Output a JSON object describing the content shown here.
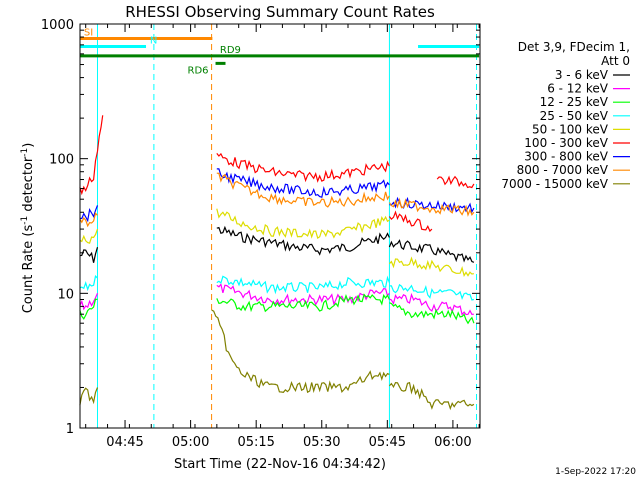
{
  "chart_data": {
    "type": "line",
    "title": "RHESSI Observing Summary Count Rates",
    "xlabel": "Start Time (22-Nov-16 04:34:42)",
    "ylabel_parts": [
      "Count Rate (s",
      "-1",
      " detector",
      "-1",
      ")"
    ],
    "yscale": "log",
    "xlim": [
      4.5783,
      6.1033
    ],
    "ylim": [
      1,
      1000
    ],
    "x_tick_labels": [
      "04:45",
      "05:00",
      "05:15",
      "05:30",
      "05:45",
      "06:00"
    ],
    "x_tick_values": [
      4.75,
      5.0,
      5.25,
      5.5,
      5.75,
      6.0
    ],
    "y_tick_labels": [
      "1",
      "10",
      "100",
      "1000"
    ],
    "y_tick_values": [
      1,
      10,
      100,
      1000
    ],
    "legend_header": [
      "Det 3,9, FDecim 1,",
      "Att 0"
    ],
    "series": [
      {
        "name": "3 - 6 keV",
        "color": "#000000",
        "segments": [
          {
            "x": [
              4.578,
              4.6,
              4.63,
              4.645
            ],
            "y": [
              19,
              20,
              18,
              22
            ]
          },
          {
            "x": [
              5.1,
              5.2,
              5.3,
              5.4,
              5.5,
              5.6,
              5.7,
              5.758
            ],
            "y": [
              30,
              26,
              24,
              22,
              21,
              22,
              25,
              26
            ]
          },
          {
            "x": [
              5.758,
              5.85,
              5.92,
              5.99,
              6.08
            ],
            "y": [
              24,
              22,
              21,
              19,
              17
            ]
          }
        ]
      },
      {
        "name": "6 - 12 keV",
        "color": "#ff00ff",
        "segments": [
          {
            "x": [
              4.578,
              4.6,
              4.63,
              4.645
            ],
            "y": [
              8,
              8,
              9,
              10
            ]
          },
          {
            "x": [
              5.1,
              5.2,
              5.3,
              5.4,
              5.5,
              5.6,
              5.7,
              5.758
            ],
            "y": [
              11,
              10,
              9,
              9,
              9,
              9,
              10,
              10
            ]
          },
          {
            "x": [
              5.758,
              5.85,
              5.92,
              5.99,
              6.08
            ],
            "y": [
              9,
              9,
              8,
              8,
              7
            ]
          }
        ]
      },
      {
        "name": "12 - 25 keV",
        "color": "#00ff00",
        "segments": [
          {
            "x": [
              4.578,
              4.6,
              4.63,
              4.645
            ],
            "y": [
              7,
              7,
              8,
              9
            ]
          },
          {
            "x": [
              5.1,
              5.2,
              5.3,
              5.4,
              5.5,
              5.6,
              5.7,
              5.758
            ],
            "y": [
              9,
              8,
              8,
              8,
              8,
              9,
              9,
              9
            ]
          },
          {
            "x": [
              5.758,
              5.85,
              5.92,
              5.99,
              6.08
            ],
            "y": [
              8,
              7,
              7,
              7,
              6
            ]
          }
        ]
      },
      {
        "name": "25 - 50 keV",
        "color": "#00ffff",
        "segments": [
          {
            "x": [
              4.578,
              4.6,
              4.63,
              4.645
            ],
            "y": [
              11,
              11,
              12,
              13
            ]
          },
          {
            "x": [
              5.1,
              5.2,
              5.3,
              5.4,
              5.5,
              5.6,
              5.7,
              5.758
            ],
            "y": [
              13,
              12,
              11,
              11,
              11,
              12,
              12,
              12
            ]
          },
          {
            "x": [
              5.758,
              5.85,
              5.92,
              5.99,
              6.08
            ],
            "y": [
              11,
              11,
              10,
              10,
              9
            ]
          }
        ]
      },
      {
        "name": "50 - 100 keV",
        "color": "#dddd00",
        "segments": [
          {
            "x": [
              4.578,
              4.6,
              4.63,
              4.645
            ],
            "y": [
              24,
              25,
              26,
              30
            ]
          },
          {
            "x": [
              5.1,
              5.2,
              5.3,
              5.4,
              5.5,
              5.6,
              5.7,
              5.758
            ],
            "y": [
              40,
              33,
              29,
              28,
              27,
              29,
              33,
              35
            ]
          },
          {
            "x": [
              5.758,
              5.85,
              5.92,
              5.99,
              6.08
            ],
            "y": [
              17,
              17,
              16,
              15,
              14
            ]
          }
        ]
      },
      {
        "name": "100 - 300 keV",
        "color": "#ff0000",
        "segments": [
          {
            "x": [
              4.578,
              4.6,
              4.63,
              4.645,
              4.665
            ],
            "y": [
              58,
              60,
              75,
              120,
              210
            ]
          },
          {
            "x": [
              5.1,
              5.2,
              5.3,
              5.4,
              5.5,
              5.6,
              5.7,
              5.758
            ],
            "y": [
              105,
              90,
              80,
              75,
              74,
              78,
              85,
              88
            ]
          },
          {
            "x": [
              5.758,
              5.85,
              5.92
            ],
            "y": [
              38,
              34,
              30
            ]
          },
          {
            "x": [
              5.94,
              6.0,
              6.08
            ],
            "y": [
              70,
              68,
              65
            ]
          }
        ]
      },
      {
        "name": "300 - 800 keV",
        "color": "#0000ff",
        "segments": [
          {
            "x": [
              4.578,
              4.6,
              4.63,
              4.645
            ],
            "y": [
              38,
              37,
              40,
              45
            ]
          },
          {
            "x": [
              5.1,
              5.2,
              5.3,
              5.4,
              5.5,
              5.6,
              5.7,
              5.758
            ],
            "y": [
              78,
              68,
              62,
              58,
              56,
              58,
              62,
              64
            ]
          },
          {
            "x": [
              5.758,
              5.85,
              5.92,
              5.99,
              6.08
            ],
            "y": [
              48,
              46,
              45,
              44,
              43
            ]
          }
        ]
      },
      {
        "name": "800 - 7000 keV",
        "color": "#ff8800",
        "segments": [
          {
            "x": [
              4.578,
              4.6,
              4.63,
              4.645
            ],
            "y": [
              34,
              33,
              35,
              38
            ]
          },
          {
            "x": [
              5.1,
              5.2,
              5.3,
              5.4,
              5.5,
              5.6,
              5.7,
              5.758
            ],
            "y": [
              75,
              60,
              52,
              48,
              47,
              48,
              52,
              53
            ]
          },
          {
            "x": [
              5.758,
              5.85,
              5.92,
              5.99,
              6.08
            ],
            "y": [
              46,
              45,
              43,
              42,
              40
            ]
          }
        ]
      },
      {
        "name": "7000 - 15000 keV",
        "color": "#808000",
        "segments": [
          {
            "x": [
              4.578,
              4.6,
              4.63,
              4.645
            ],
            "y": [
              1.5,
              2,
              1.5,
              2
            ]
          },
          {
            "x": [
              5.08,
              5.12,
              5.16,
              5.2,
              5.3,
              5.4,
              5.5,
              5.6,
              5.7,
              5.758
            ],
            "y": [
              8,
              5,
              3,
              2.5,
              2,
              2,
              2,
              2,
              2.5,
              2.5
            ]
          },
          {
            "x": [
              5.758,
              5.85,
              5.92,
              5.99,
              6.08
            ],
            "y": [
              2,
              2,
              1.5,
              1.5,
              1.5
            ]
          }
        ]
      }
    ],
    "flags": [
      {
        "label": "SI",
        "color": "#ff8800",
        "x": [
          4.578,
          5.083
        ],
        "y": 780
      },
      {
        "label": "N",
        "color": "#00ffff",
        "x": [
          4.578,
          4.83
        ],
        "y": 680
      },
      {
        "label": "",
        "color": "#00ffff",
        "x": [
          5.867,
          6.1
        ],
        "y": 680
      },
      {
        "label": "RD9",
        "color": "#008000",
        "x": [
          4.578,
          6.1
        ],
        "y": 580
      },
      {
        "label": "RD6",
        "color": "#008000",
        "x": [
          5.095,
          5.133
        ],
        "y": 510
      }
    ],
    "vlines": [
      {
        "x": 4.645,
        "color": "#00ffff",
        "style": "solid"
      },
      {
        "x": 4.86,
        "color": "#00ffff",
        "style": "dashed"
      },
      {
        "x": 5.08,
        "color": "#ff8800",
        "style": "dashed"
      },
      {
        "x": 5.758,
        "color": "#00ffff",
        "style": "solid"
      },
      {
        "x": 6.09,
        "color": "#00ffff",
        "style": "dashed"
      }
    ],
    "timestamp": "1-Sep-2022 17:20"
  }
}
